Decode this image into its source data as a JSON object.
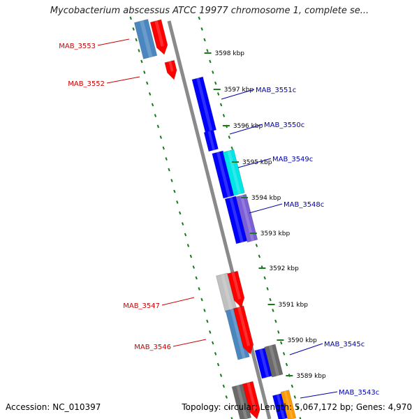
{
  "title": "Mycobacterium abscessus ATCC 19977 chromosome 1, complete se...",
  "accession_text": "Accession: NC_010397",
  "stats_text": "Topology: circular; Length: 5,067,172 bp; Genes: 4,970",
  "colors": {
    "backbone": "#8a8a8a",
    "ticks": "#1a7a1a",
    "forward_label": "#cc0000",
    "reverse_label": "#0000aa",
    "tick_label": "#000000"
  },
  "ruler_ticks": [
    {
      "label": "3598 kbp"
    },
    {
      "label": "3597 kbp"
    },
    {
      "label": "3596 kbp"
    },
    {
      "label": "3595 kbp"
    },
    {
      "label": "3594 kbp"
    },
    {
      "label": "3593 kbp"
    },
    {
      "label": "3592 kbp"
    },
    {
      "label": "3591 kbp"
    },
    {
      "label": "3590 kbp"
    },
    {
      "label": "3589 kbp"
    }
  ],
  "gene_labels": [
    {
      "name": "MAB_3553",
      "strand": "forward"
    },
    {
      "name": "MAB_3552",
      "strand": "forward"
    },
    {
      "name": "MAB_3551c",
      "strand": "reverse"
    },
    {
      "name": "MAB_3550c",
      "strand": "reverse"
    },
    {
      "name": "MAB_3549c",
      "strand": "reverse"
    },
    {
      "name": "MAB_3548c",
      "strand": "reverse"
    },
    {
      "name": "MAB_3547",
      "strand": "forward"
    },
    {
      "name": "MAB_3546",
      "strand": "forward"
    },
    {
      "name": "MAB_3545c",
      "strand": "reverse"
    },
    {
      "name": "MAB_3543c",
      "strand": "reverse"
    }
  ],
  "features": [
    {
      "gene": "MAB_3553",
      "color": "#4a86c0"
    },
    {
      "gene": "",
      "color": "#ff0000"
    },
    {
      "gene": "MAB_3552",
      "color": "#ff0000"
    },
    {
      "gene": "MAB_3551c",
      "color": "#0000ff"
    },
    {
      "gene": "MAB_3550c",
      "color": "#0000ff"
    },
    {
      "gene": "",
      "color": "#0000ff"
    },
    {
      "gene": "MAB_3549c",
      "color": "#00e5e5"
    },
    {
      "gene": "",
      "color": "#0000ff"
    },
    {
      "gene": "MAB_3548c",
      "color": "#7a5fd6"
    },
    {
      "gene": "MAB_3547",
      "color": "#c0c0c0"
    },
    {
      "gene": "",
      "color": "#ff0000"
    },
    {
      "gene": "MAB_3546",
      "color": "#4a86c0"
    },
    {
      "gene": "",
      "color": "#ff0000"
    },
    {
      "gene": "MAB_3545c",
      "color": "#0000ff"
    },
    {
      "gene": "",
      "color": "#6a6a6a"
    },
    {
      "gene": "",
      "color": "#6a6a6a"
    },
    {
      "gene": "",
      "color": "#ff0000"
    },
    {
      "gene": "MAB_3543c",
      "color": "#0000ff"
    },
    {
      "gene": "",
      "color": "#ff9900"
    }
  ]
}
